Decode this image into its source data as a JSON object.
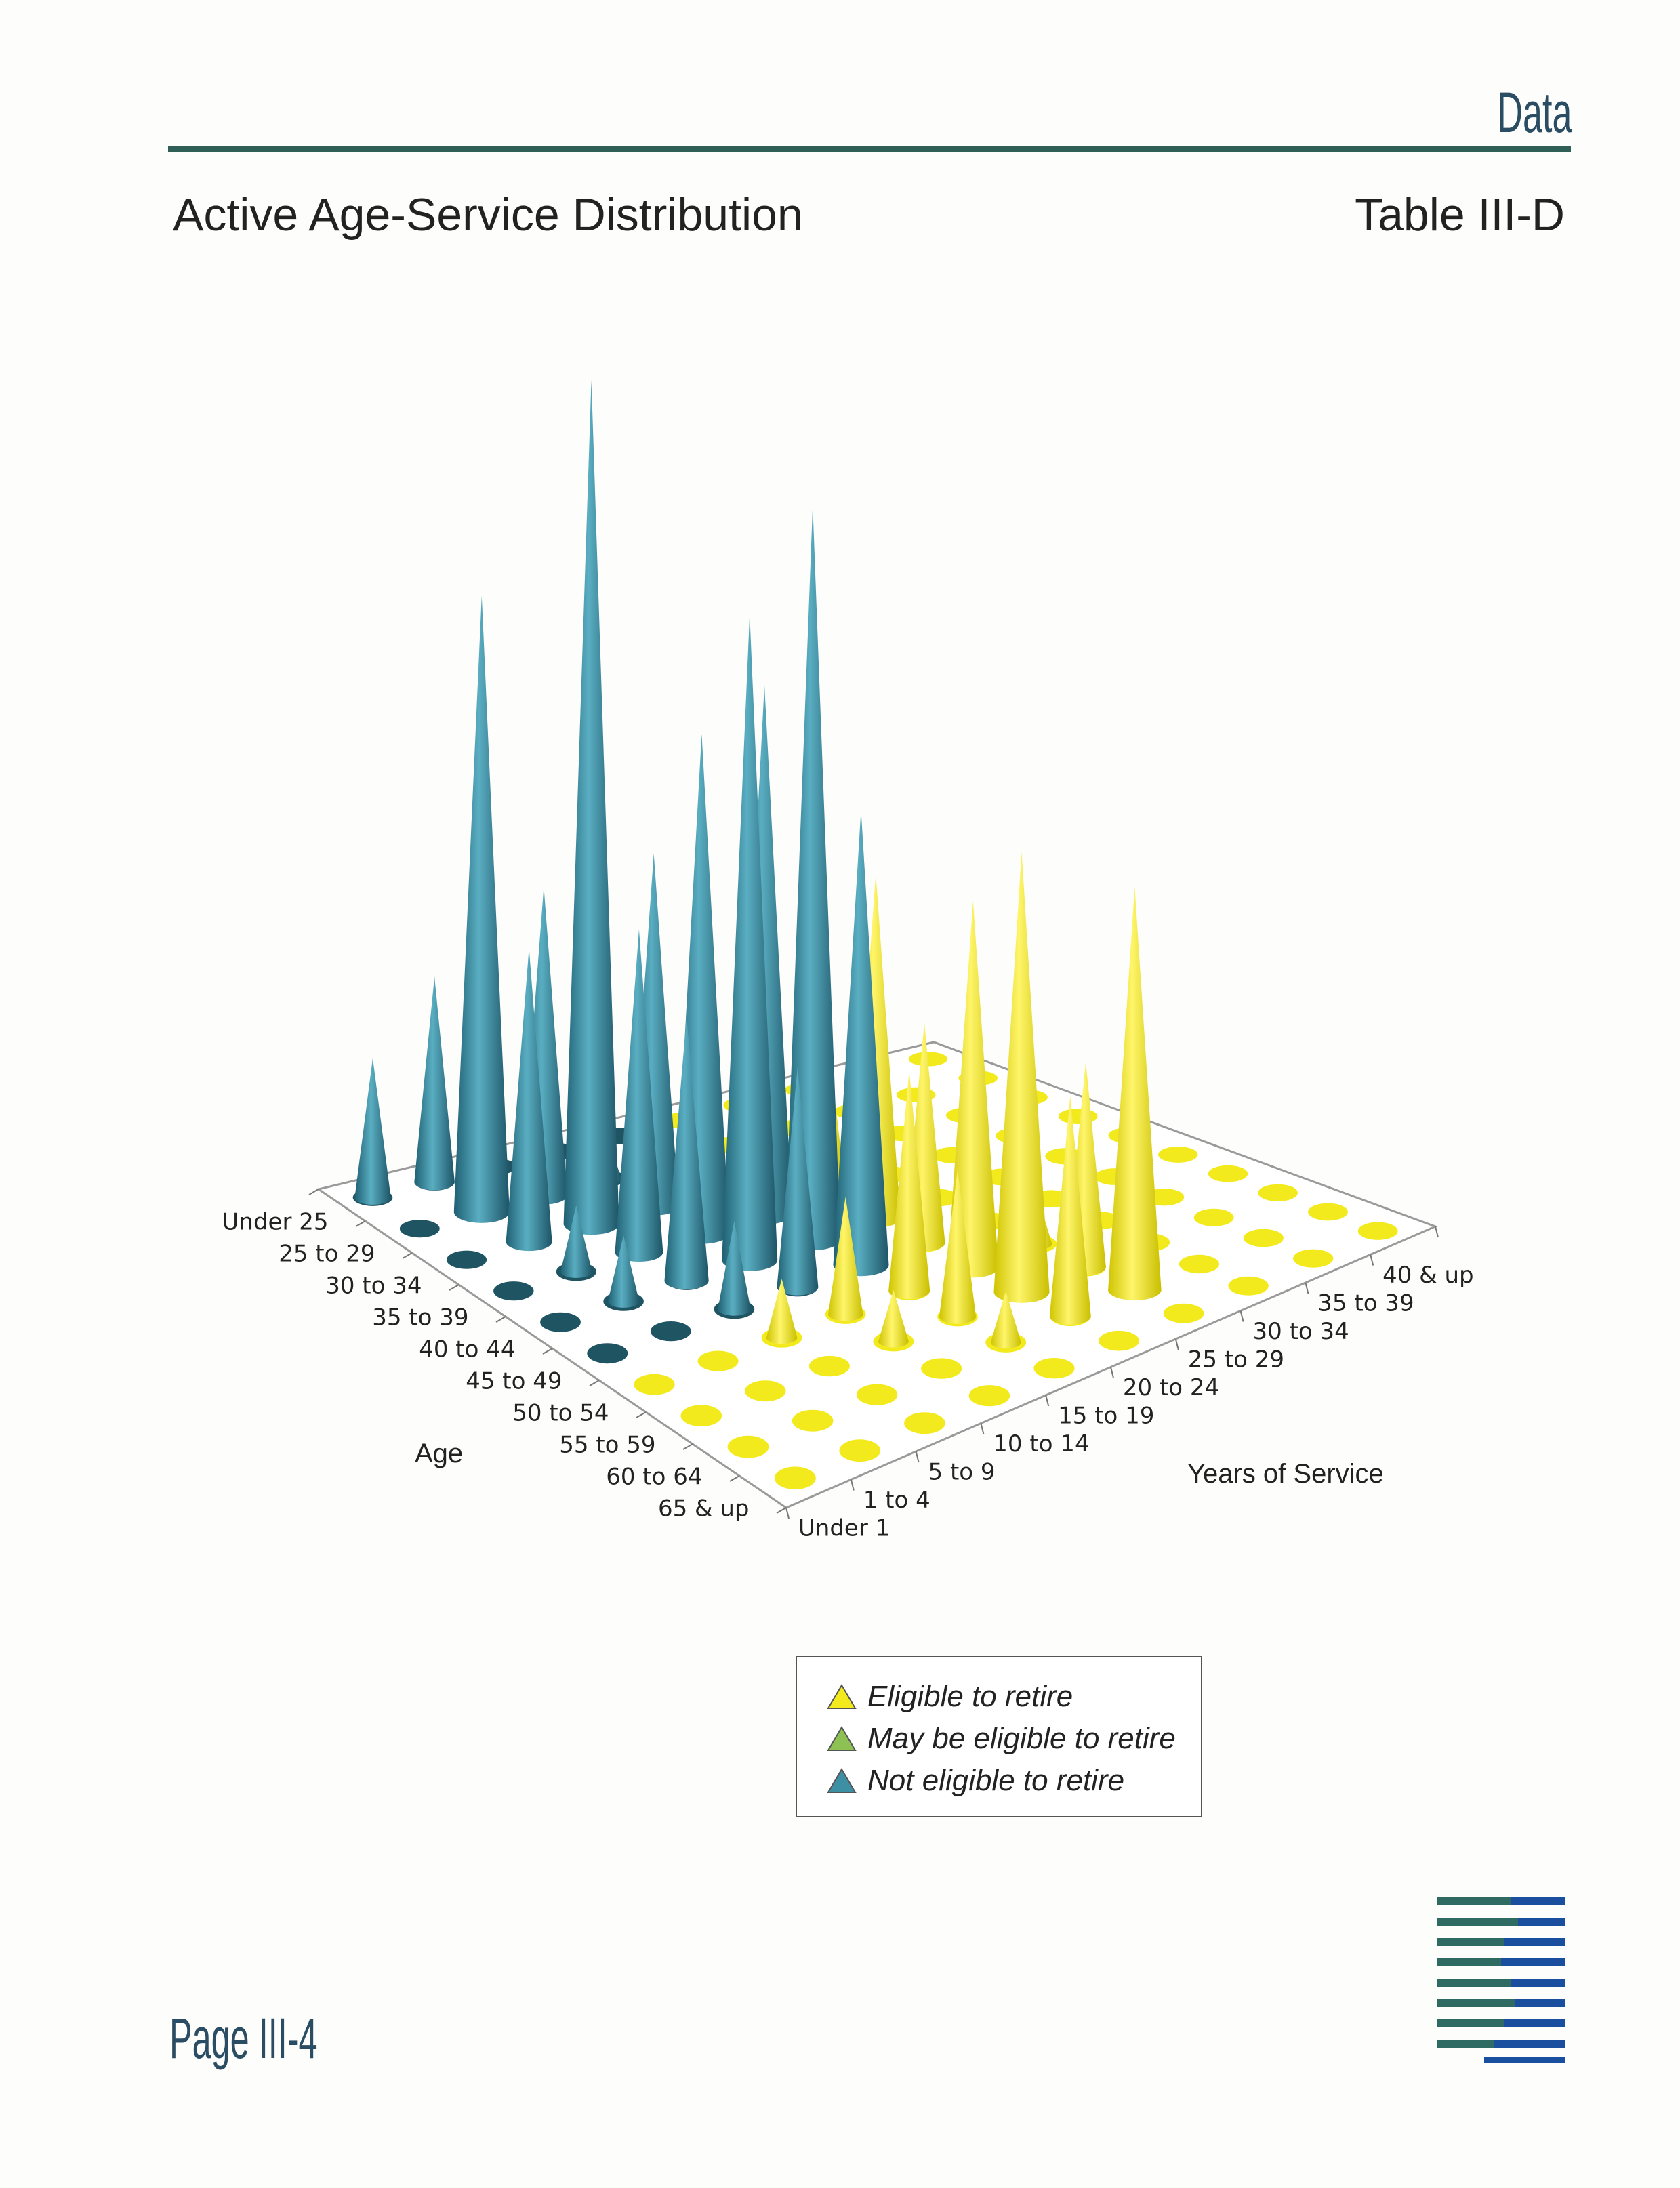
{
  "header": {
    "section_label": "Data",
    "title": "Active Age-Service Distribution",
    "table_id": "Table III-D"
  },
  "footer": {
    "page_number": "Page III-4"
  },
  "colors": {
    "eligible": "#f2ea1c",
    "may_be_eligible": "#8dc153",
    "not_eligible": "#3d8fa3",
    "not_eligible_light": "#a9cdd6"
  },
  "chart_data": {
    "type": "3d-cone",
    "title": "Active Age-Service Distribution",
    "age_axis": {
      "label": "Age",
      "categories": [
        "Under 25",
        "25 to 29",
        "30 to 34",
        "35 to 39",
        "40 to 44",
        "45 to 49",
        "50 to 54",
        "55 to 59",
        "60 to 64",
        "65 & up"
      ]
    },
    "service_axis": {
      "label": "Years of Service",
      "categories": [
        "Under 1",
        "1 to 4",
        "5 to 9",
        "10 to 14",
        "15 to 19",
        "20 to 24",
        "25 to 29",
        "30 to 34",
        "35 to 39",
        "40 & up"
      ]
    },
    "series_legend": [
      "Eligible to retire",
      "May be eligible to retire",
      "Not eligible to retire"
    ],
    "status_by_age": [
      "N",
      "N",
      "N",
      "N",
      "N",
      "N",
      "E",
      "E",
      "E",
      "E"
    ],
    "status_by_service": [
      "-",
      "-",
      "-",
      "-",
      "-",
      "E",
      "E",
      "E",
      "E",
      "E"
    ],
    "relative_counts": [
      [
        19,
        28,
        0,
        0,
        0,
        0,
        0,
        0,
        0,
        0
      ],
      [
        0,
        84,
        42,
        7,
        0,
        0,
        0,
        0,
        0,
        0
      ],
      [
        0,
        40,
        115,
        48,
        7,
        0,
        0,
        0,
        0,
        0
      ],
      [
        0,
        9,
        44,
        68,
        72,
        22,
        0,
        0,
        0,
        0
      ],
      [
        0,
        9,
        36,
        88,
        100,
        47,
        0,
        0,
        0,
        0
      ],
      [
        0,
        0,
        12,
        30,
        62,
        30,
        0,
        0,
        0,
        0
      ],
      [
        0,
        0,
        8,
        16,
        30,
        50,
        7,
        0,
        0,
        0
      ],
      [
        0,
        0,
        0,
        7,
        20,
        60,
        28,
        0,
        0,
        0
      ],
      [
        0,
        0,
        0,
        0,
        7,
        30,
        55,
        0,
        0,
        0
      ],
      [
        0,
        0,
        0,
        0,
        0,
        0,
        0,
        0,
        0,
        0
      ]
    ]
  }
}
